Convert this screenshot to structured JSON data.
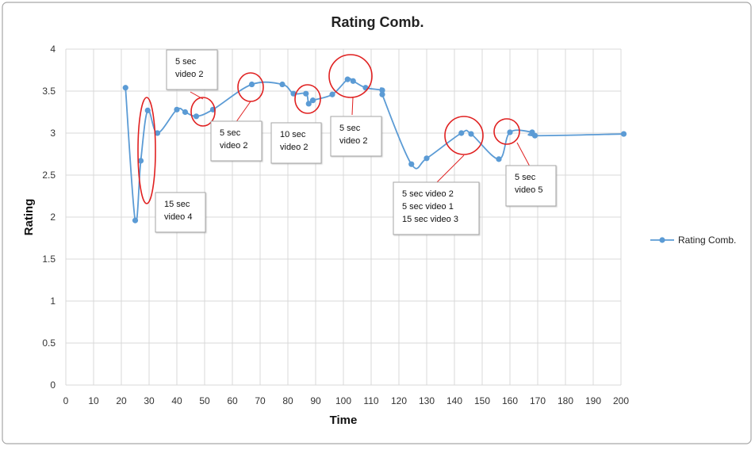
{
  "chart_data": {
    "type": "line",
    "title": "Rating Comb.",
    "xlabel": "Time",
    "ylabel": "Rating",
    "xlim": [
      0,
      200
    ],
    "ylim": [
      0,
      4
    ],
    "xticks": [
      "0",
      "10",
      "20",
      "30",
      "40",
      "50",
      "60",
      "70",
      "80",
      "90",
      "100",
      "110",
      "120",
      "130",
      "140",
      "150",
      "160",
      "170",
      "180",
      "190",
      "200"
    ],
    "yticks": [
      "0",
      "0.5",
      "1",
      "1.5",
      "2",
      "2.5",
      "3",
      "3.5",
      "4"
    ],
    "grid": true,
    "legend_position": "right",
    "series": [
      {
        "name": "Rating Comb.",
        "color": "#5b9bd5",
        "smooth": true,
        "points": [
          [
            21.5,
            3.54
          ],
          [
            25,
            1.96
          ],
          [
            27,
            2.67
          ],
          [
            29.5,
            3.27
          ],
          [
            33,
            3.0
          ],
          [
            40,
            3.28
          ],
          [
            43,
            3.25
          ],
          [
            47,
            3.2
          ],
          [
            53,
            3.28
          ],
          [
            67,
            3.58
          ],
          [
            78,
            3.58
          ],
          [
            82,
            3.47
          ],
          [
            86.5,
            3.47
          ],
          [
            87.5,
            3.35
          ],
          [
            89,
            3.39
          ],
          [
            96,
            3.46
          ],
          [
            101.5,
            3.64
          ],
          [
            103.5,
            3.62
          ],
          [
            108,
            3.54
          ],
          [
            114,
            3.51
          ],
          [
            114,
            3.46
          ],
          [
            124.5,
            2.63
          ],
          [
            130,
            2.7
          ],
          [
            142.5,
            3.0
          ],
          [
            146,
            2.99
          ],
          [
            156,
            2.69
          ],
          [
            160,
            3.01
          ],
          [
            168,
            3.01
          ],
          [
            169,
            2.97
          ],
          [
            201,
            2.99
          ]
        ]
      }
    ],
    "annotations": [
      {
        "text": [
          "5 sec",
          "video 2"
        ]
      },
      {
        "text": [
          "15 sec",
          "video 4"
        ]
      },
      {
        "text": [
          "5 sec",
          "video 2"
        ]
      },
      {
        "text": [
          "10 sec",
          "video 2"
        ]
      },
      {
        "text": [
          "5 sec",
          "video 2"
        ]
      },
      {
        "text": [
          "5 sec video 2",
          "5 sec video 1",
          "15 sec video 3"
        ]
      },
      {
        "text": [
          "5 sec",
          "video 5"
        ]
      }
    ]
  }
}
